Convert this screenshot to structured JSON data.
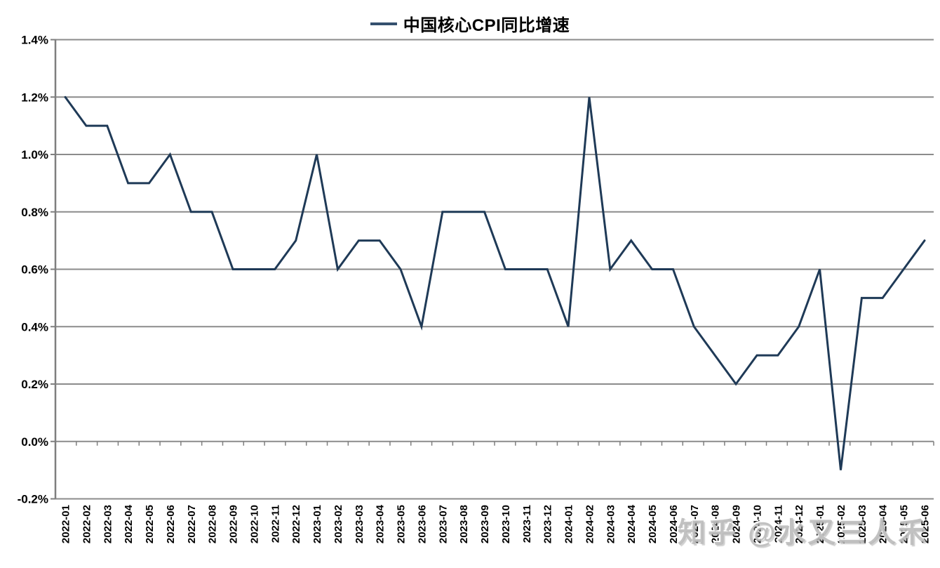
{
  "legend": {
    "label": "中国核心CPI同比增速"
  },
  "watermark": {
    "text": "知乎 @水又三人禾"
  },
  "colors": {
    "line": "#1f3a57",
    "legend_swatch": "#35506e",
    "grid": "#8b8b8b",
    "axis": "#7f7f7f",
    "tick_label": "#000000"
  },
  "chart_data": {
    "type": "line",
    "title": "中国核心CPI同比增速",
    "legend_position": "top-center",
    "grid": true,
    "ylim": [
      -0.2,
      1.4
    ],
    "ytick_step": 0.2,
    "ytick_labels_top_to_bottom": [
      "1.4%",
      "1.2%",
      "1.0%",
      "0.8%",
      "0.6%",
      "0.4%",
      "0.2%",
      "0.0%",
      "-0.2%"
    ],
    "xlabel": "",
    "ylabel": "",
    "categories": [
      "2022-01",
      "2022-02",
      "2022-03",
      "2022-04",
      "2022-05",
      "2022-06",
      "2022-07",
      "2022-08",
      "2022-09",
      "2022-10",
      "2022-11",
      "2022-12",
      "2023-01",
      "2023-02",
      "2023-03",
      "2023-04",
      "2023-05",
      "2023-06",
      "2023-07",
      "2023-08",
      "2023-09",
      "2023-10",
      "2023-11",
      "2023-12",
      "2024-01",
      "2024-02",
      "2024-03",
      "2024-04",
      "2024-05",
      "2024-06",
      "2024-07",
      "2024-08",
      "2024-09",
      "2024-10",
      "2024-11",
      "2024-12",
      "2025-01",
      "2025-02",
      "2025-03",
      "2025-04",
      "2025-05",
      "2025-06"
    ],
    "series": [
      {
        "name": "中国核心CPI同比增速",
        "unit": "%",
        "values": [
          1.2,
          1.1,
          1.1,
          0.9,
          0.9,
          1.0,
          0.8,
          0.8,
          0.6,
          0.6,
          0.6,
          0.7,
          1.0,
          0.6,
          0.7,
          0.7,
          0.6,
          0.4,
          0.8,
          0.8,
          0.8,
          0.6,
          0.6,
          0.6,
          0.4,
          1.2,
          0.6,
          0.7,
          0.6,
          0.6,
          0.4,
          0.3,
          0.2,
          0.3,
          0.3,
          0.4,
          0.6,
          -0.1,
          0.5,
          0.5,
          0.6,
          0.7
        ]
      }
    ]
  }
}
